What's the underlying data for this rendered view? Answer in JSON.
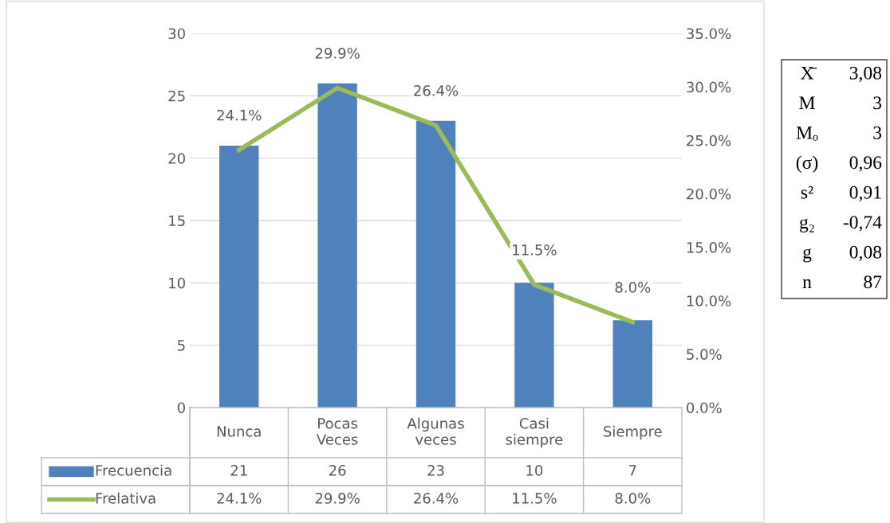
{
  "chart_data": {
    "type": "bar",
    "categories": [
      "Nunca",
      "Pocas\nVeces",
      "Algunas\nveces",
      "Casi\nsiempre",
      "Siempre"
    ],
    "series": [
      {
        "name": "Frecuencia",
        "color": "#4f81bd",
        "values": [
          21,
          26,
          23,
          10,
          7
        ],
        "value_labels": [
          "21",
          "26",
          "23",
          "10",
          "7"
        ]
      },
      {
        "name": "Frelativa",
        "type": "line",
        "axis": "y2",
        "color": "#9bbb59",
        "values": [
          24.1,
          29.9,
          26.4,
          11.5,
          8.0
        ],
        "value_labels": [
          "24.1%",
          "29.9%",
          "26.4%",
          "11.5%",
          "8.0%"
        ]
      }
    ],
    "ylim": [
      0,
      30
    ],
    "yticks": [
      0,
      5,
      10,
      15,
      20,
      25,
      30
    ],
    "y2lim": [
      0,
      35
    ],
    "y2ticks": [
      {
        "value": 0,
        "label": "0.0%"
      },
      {
        "value": 5,
        "label": "5.0%"
      },
      {
        "value": 10,
        "label": "10.0%"
      },
      {
        "value": 15,
        "label": "15.0%"
      },
      {
        "value": 20,
        "label": "20.0%"
      },
      {
        "value": 25,
        "label": "25.0%"
      },
      {
        "value": 30,
        "label": "30.0%"
      },
      {
        "value": 35,
        "label": "35.0%"
      }
    ],
    "grid": "y",
    "legend": "bottom",
    "marker": "none",
    "line_style": "solid",
    "annotations": [
      "X̄ 3,08",
      "M 3",
      "Mₒ 3",
      "(σ) 0,96",
      "s² 0,91",
      "g₂ -0,74",
      "g 0,08",
      "n 87"
    ]
  }
}
